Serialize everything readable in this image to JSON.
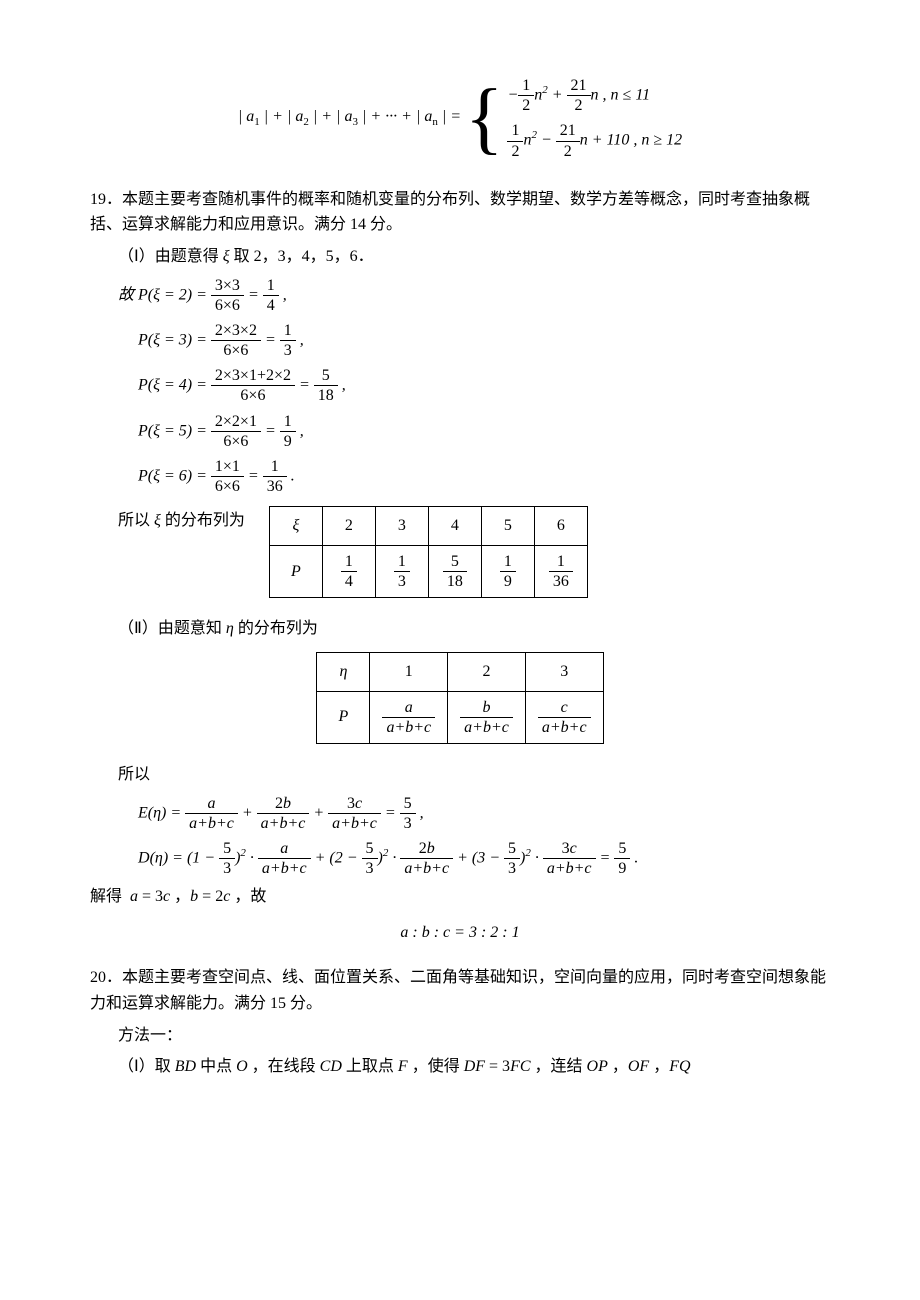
{
  "piecewise": {
    "lhs": "| a₁ | + | a₂ | + | a₃ | + ··· + | aₙ | =",
    "case1": "− (1/2) n² + (21/2) n , n ≤ 11",
    "case2": "(1/2) n² − (21/2) n + 110 , n ≥ 12"
  },
  "p19_intro": "19．本题主要考查随机事件的概率和随机变量的分布列、数学期望、数学方差等概念，同时考查抽象概括、运算求解能力和应用意识。满分 14 分。",
  "p19_part1": "（Ⅰ）由题意得 ξ 取 2，3，4，5，6．",
  "p19_eq_intro": "故 ",
  "p19_eq2": "P(ξ = 2) = (3×3)/(6×6) = 1/4 ,",
  "p19_eq3": "P(ξ = 3) = (2×3×2)/(6×6) = 1/3 ,",
  "p19_eq4": "P(ξ = 4) = (2×3×1+2×2)/(6×6) = 5/18 ,",
  "p19_eq5": "P(ξ = 5) = (2×2×1)/(6×6) = 1/9 ,",
  "p19_eq6": "P(ξ = 6) = (1×1)/(6×6) = 1/36 .",
  "p19_table_intro": "所以 ξ 的分布列为",
  "dist_xi": {
    "head": "ξ",
    "vals": [
      "2",
      "3",
      "4",
      "5",
      "6"
    ],
    "probs_num": [
      "1",
      "1",
      "5",
      "1",
      "1"
    ],
    "probs_den": [
      "4",
      "3",
      "18",
      "9",
      "36"
    ]
  },
  "p19_part2": "（Ⅱ）由题意知 η 的分布列为",
  "dist_eta": {
    "head": "η",
    "vals": [
      "1",
      "2",
      "3"
    ],
    "probs": [
      "a/(a+b+c)",
      "b/(a+b+c)",
      "c/(a+b+c)"
    ]
  },
  "p19_so": "所以",
  "e_eta": "E(η) = a/(a+b+c) + 2b/(a+b+c) + 3c/(a+b+c) = 5/3 ,",
  "d_eta": "D(η) = (1 − 5/3)² · a/(a+b+c) + (2 − 5/3)² · 2b/(a+b+c) + (3 − 5/3)² · 3c/(a+b+c) = 5/9 .",
  "p19_solve": "解得  a = 3c ， b = 2c ， 故",
  "p19_ratio": "a : b : c = 3 : 2 : 1",
  "p20_intro": "20．本题主要考查空间点、线、面位置关系、二面角等基础知识，空间向量的应用，同时考查空间想象能力和运算求解能力。满分 15 分。",
  "p20_method": "方法一：",
  "p20_part1": "（Ⅰ）取 BD 中点 O ，在线段 CD 上取点 F ，使得 DF = 3FC ，连结 OP ， OF ， FQ",
  "colors": {
    "text": "#000000",
    "background": "#ffffff",
    "border": "#000000"
  },
  "fonts": {
    "body_family": "SimSun, Times New Roman, serif",
    "math_family": "Times New Roman, serif",
    "body_size_pt": 12,
    "math_size_pt": 12
  }
}
